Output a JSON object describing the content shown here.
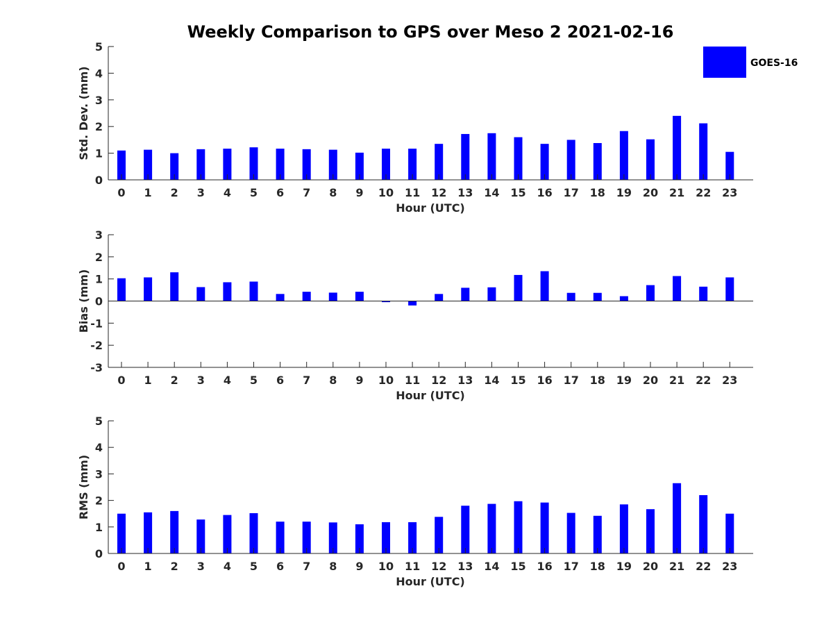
{
  "figure": {
    "title": "Weekly Comparison to GPS over Meso 2 2021-02-16"
  },
  "legend": {
    "label": "GOES-16",
    "color": "#0000ff"
  },
  "chart_data": [
    {
      "type": "bar",
      "title": "Weekly Comparison to GPS over Meso 2 2021-02-16",
      "xlabel": "Hour (UTC)",
      "ylabel": "Std. Dev. (mm)",
      "ylim": [
        0,
        5
      ],
      "yticks": [
        0,
        1,
        2,
        3,
        4,
        5
      ],
      "categories": [
        "0",
        "1",
        "2",
        "3",
        "4",
        "5",
        "6",
        "7",
        "8",
        "9",
        "10",
        "11",
        "12",
        "13",
        "14",
        "15",
        "16",
        "17",
        "18",
        "19",
        "20",
        "21",
        "22",
        "23"
      ],
      "series": [
        {
          "name": "GOES-16",
          "values": [
            1.1,
            1.13,
            1.0,
            1.15,
            1.17,
            1.22,
            1.17,
            1.15,
            1.13,
            1.02,
            1.17,
            1.17,
            1.35,
            1.72,
            1.75,
            1.6,
            1.35,
            1.5,
            1.38,
            1.83,
            1.52,
            2.4,
            2.12,
            1.05
          ]
        }
      ]
    },
    {
      "type": "bar",
      "xlabel": "Hour (UTC)",
      "ylabel": "Bias (mm)",
      "ylim": [
        -3,
        3
      ],
      "yticks": [
        -3,
        -2,
        -1,
        0,
        1,
        2,
        3
      ],
      "categories": [
        "0",
        "1",
        "2",
        "3",
        "4",
        "5",
        "6",
        "7",
        "8",
        "9",
        "10",
        "11",
        "12",
        "13",
        "14",
        "15",
        "16",
        "17",
        "18",
        "19",
        "20",
        "21",
        "22",
        "23"
      ],
      "series": [
        {
          "name": "GOES-16",
          "values": [
            1.03,
            1.07,
            1.3,
            0.63,
            0.85,
            0.88,
            0.32,
            0.42,
            0.38,
            0.42,
            -0.05,
            -0.2,
            0.32,
            0.6,
            0.62,
            1.18,
            1.35,
            0.37,
            0.37,
            0.22,
            0.72,
            1.13,
            0.65,
            1.07
          ]
        }
      ]
    },
    {
      "type": "bar",
      "xlabel": "Hour (UTC)",
      "ylabel": "RMS (mm)",
      "ylim": [
        0,
        5
      ],
      "yticks": [
        0,
        1,
        2,
        3,
        4,
        5
      ],
      "categories": [
        "0",
        "1",
        "2",
        "3",
        "4",
        "5",
        "6",
        "7",
        "8",
        "9",
        "10",
        "11",
        "12",
        "13",
        "14",
        "15",
        "16",
        "17",
        "18",
        "19",
        "20",
        "21",
        "22",
        "23"
      ],
      "series": [
        {
          "name": "GOES-16",
          "values": [
            1.5,
            1.55,
            1.6,
            1.28,
            1.45,
            1.52,
            1.2,
            1.2,
            1.17,
            1.1,
            1.18,
            1.18,
            1.38,
            1.8,
            1.87,
            1.97,
            1.92,
            1.53,
            1.42,
            1.85,
            1.67,
            2.65,
            2.2,
            1.5
          ]
        }
      ]
    }
  ]
}
